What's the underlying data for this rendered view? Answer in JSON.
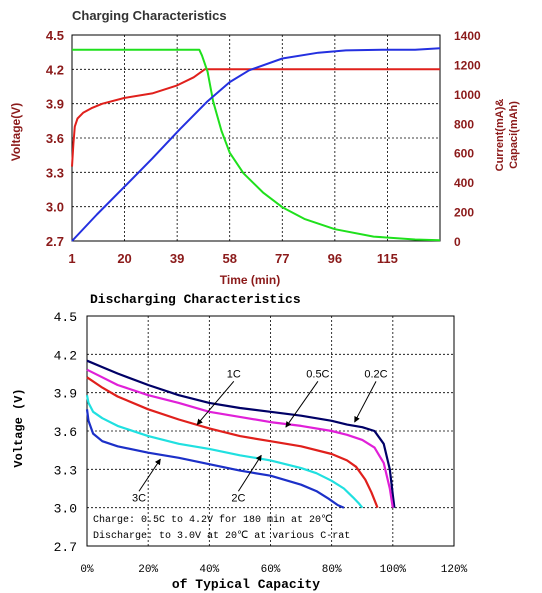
{
  "chart_data": [
    {
      "type": "line",
      "title": "Charging Characteristics",
      "xlabel": "Time (min)",
      "ylabel": "Voltage(V)",
      "y2label_line1": "Current(mA)&",
      "y2label_line2": "Capaci(mAh)",
      "xlim": [
        1,
        134
      ],
      "ylim": [
        2.7,
        4.5
      ],
      "y2lim": [
        0,
        1400
      ],
      "x_ticks": [
        "1",
        "20",
        "39",
        "58",
        "77",
        "96",
        "115"
      ],
      "x_tick_values": [
        1,
        20,
        39,
        58,
        77,
        96,
        115
      ],
      "y_ticks": [
        "2.7",
        "3.0",
        "3.3",
        "3.6",
        "3.9",
        "4.2",
        "4.5"
      ],
      "y_tick_values": [
        2.7,
        3.0,
        3.3,
        3.6,
        3.9,
        4.2,
        4.5
      ],
      "y2_ticks": [
        "0",
        "200",
        "400",
        "600",
        "800",
        "1000",
        "1200",
        "1400"
      ],
      "y2_tick_values": [
        0,
        200,
        400,
        600,
        800,
        1000,
        1200,
        1400
      ],
      "grid": true,
      "colors": {
        "voltage": "#e0201c",
        "current": "#1fe01c",
        "capacity": "#2430e0",
        "title": "#333333",
        "labels": "#8b1a1a"
      },
      "series": [
        {
          "key": "voltage",
          "axis": "left",
          "x": [
            1,
            1.5,
            2,
            3,
            5,
            8,
            12,
            20,
            30,
            39,
            45,
            49,
            134
          ],
          "y": [
            3.35,
            3.55,
            3.7,
            3.77,
            3.82,
            3.86,
            3.9,
            3.95,
            3.99,
            4.06,
            4.13,
            4.2,
            4.2
          ]
        },
        {
          "key": "current",
          "axis": "right",
          "x": [
            1,
            47,
            48,
            50,
            52,
            55,
            58,
            63,
            70,
            77,
            85,
            96,
            110,
            125,
            134
          ],
          "y": [
            1300,
            1300,
            1260,
            1150,
            950,
            750,
            600,
            460,
            330,
            230,
            150,
            80,
            30,
            10,
            5
          ]
        },
        {
          "key": "capacity",
          "axis": "right",
          "x": [
            1,
            10,
            20,
            30,
            40,
            50,
            58,
            65,
            77,
            90,
            100,
            115,
            125,
            134
          ],
          "y": [
            0,
            180,
            370,
            560,
            760,
            950,
            1080,
            1160,
            1240,
            1280,
            1295,
            1300,
            1300,
            1310
          ]
        }
      ]
    },
    {
      "type": "line",
      "title": "Discharging Characteristics",
      "xlabel": "of Typical Capacity",
      "ylabel": "Voltage (V)",
      "xlim": [
        0,
        120
      ],
      "ylim": [
        2.7,
        4.5
      ],
      "x_ticks": [
        "0%",
        "20%",
        "40%",
        "60%",
        "80%",
        "100%",
        "120%"
      ],
      "x_tick_values": [
        0,
        20,
        40,
        60,
        80,
        100,
        120
      ],
      "y_ticks": [
        "2.7",
        "3.0",
        "3.3",
        "3.6",
        "3.9",
        "4.2",
        "4.5"
      ],
      "y_tick_values": [
        2.7,
        3.0,
        3.3,
        3.6,
        3.9,
        4.2,
        4.5
      ],
      "grid": true,
      "notes": [
        "Charge: 0.5C to 4.2V for 180 min at 20℃",
        "Discharge: to 3.0V at 20℃ at various C-rat"
      ],
      "series": [
        {
          "name": "0.2C",
          "color": "#000066",
          "x": [
            0,
            5,
            10,
            20,
            30,
            40,
            50,
            60,
            70,
            80,
            85,
            90,
            94,
            97,
            99,
            100,
            100.5
          ],
          "y": [
            4.15,
            4.1,
            4.05,
            3.96,
            3.88,
            3.82,
            3.78,
            3.75,
            3.72,
            3.68,
            3.65,
            3.63,
            3.6,
            3.5,
            3.3,
            3.1,
            3.0
          ]
        },
        {
          "name": "0.5C",
          "color": "#e020d8",
          "x": [
            0,
            5,
            10,
            20,
            30,
            40,
            50,
            60,
            70,
            80,
            85,
            90,
            94,
            97,
            99,
            100
          ],
          "y": [
            4.08,
            4.02,
            3.96,
            3.88,
            3.82,
            3.75,
            3.71,
            3.67,
            3.64,
            3.6,
            3.57,
            3.53,
            3.47,
            3.35,
            3.15,
            3.0
          ]
        },
        {
          "name": "1C",
          "color": "#e0201c",
          "x": [
            0,
            5,
            10,
            20,
            30,
            40,
            50,
            60,
            70,
            80,
            85,
            88,
            91,
            93,
            94.5,
            95
          ],
          "y": [
            4.02,
            3.94,
            3.87,
            3.77,
            3.69,
            3.62,
            3.56,
            3.52,
            3.48,
            3.42,
            3.37,
            3.32,
            3.22,
            3.12,
            3.03,
            3.0
          ]
        },
        {
          "name": "2C",
          "color": "#20e0e0",
          "x": [
            0,
            0.5,
            2,
            5,
            10,
            20,
            30,
            40,
            50,
            60,
            70,
            75,
            80,
            84,
            87,
            89,
            90
          ],
          "y": [
            3.88,
            3.82,
            3.75,
            3.7,
            3.64,
            3.56,
            3.5,
            3.46,
            3.41,
            3.37,
            3.31,
            3.27,
            3.21,
            3.15,
            3.08,
            3.03,
            3.0
          ]
        },
        {
          "name": "3C",
          "color": "#1c30c8",
          "x": [
            0,
            0.5,
            2,
            5,
            10,
            20,
            30,
            40,
            50,
            60,
            70,
            75,
            79,
            82,
            84
          ],
          "y": [
            3.77,
            3.68,
            3.58,
            3.52,
            3.48,
            3.43,
            3.39,
            3.34,
            3.29,
            3.25,
            3.18,
            3.13,
            3.07,
            3.02,
            3.0
          ]
        }
      ],
      "annotations": [
        {
          "text": "1C",
          "x": 48,
          "y": 4.02,
          "tx": 36,
          "ty": 3.65
        },
        {
          "text": "0.5C",
          "x": 75.5,
          "y": 4.02,
          "tx": 65,
          "ty": 3.63
        },
        {
          "text": "0.2C",
          "x": 94.5,
          "y": 4.02,
          "tx": 87.5,
          "ty": 3.67
        },
        {
          "text": "2C",
          "x": 49.5,
          "y": 3.05,
          "tx": 57,
          "ty": 3.41
        },
        {
          "text": "3C",
          "x": 17,
          "y": 3.05,
          "tx": 24,
          "ty": 3.38
        }
      ]
    }
  ]
}
